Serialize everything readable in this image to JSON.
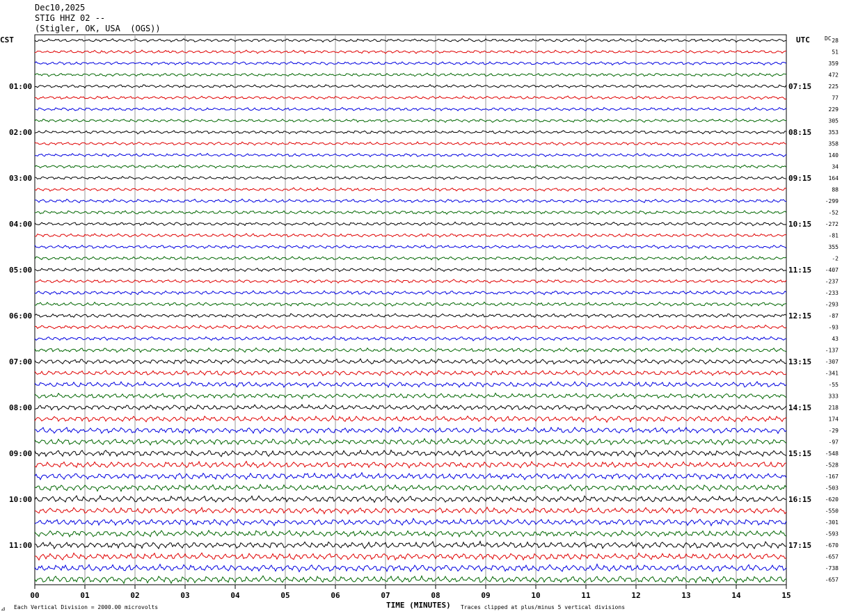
{
  "header": {
    "date": "Dec10,2025",
    "channel": "STIG HHZ 02 --",
    "location": "(Stigler, OK, USA  (OGS))"
  },
  "left_timezone": "CST",
  "right_timezone": "UTC",
  "dc_label": "DC",
  "footer": {
    "left_mark": "⊿",
    "scale": "Each Vertical Division = 2000.00 microvolts",
    "axis_title": "TIME (MINUTES)",
    "clip": "Traces clipped at plus/minus 5 vertical divisions"
  },
  "colors": {
    "trace_cycle": [
      "#000000",
      "#e00000",
      "#0000e0",
      "#006600"
    ],
    "grid": "#999999"
  },
  "chart_data": {
    "type": "line",
    "title": "",
    "xlabel": "TIME (MINUTES)",
    "x_ticks": [
      "00",
      "01",
      "02",
      "03",
      "04",
      "05",
      "06",
      "07",
      "08",
      "09",
      "10",
      "11",
      "12",
      "13",
      "14",
      "15"
    ],
    "xlim": [
      0,
      15
    ],
    "left_time_labels": [
      "01:00",
      "02:00",
      "03:00",
      "04:00",
      "05:00",
      "06:00",
      "07:00",
      "08:00",
      "09:00",
      "10:00",
      "11:00"
    ],
    "right_time_labels": [
      "07:15",
      "08:15",
      "09:15",
      "10:15",
      "11:15",
      "12:15",
      "13:15",
      "14:15",
      "15:15",
      "16:15",
      "17:15"
    ],
    "dc_offsets": [
      "28",
      "51",
      "359",
      "472",
      "225",
      "77",
      "229",
      "305",
      "353",
      "358",
      "140",
      "34",
      "164",
      "88",
      "-299",
      "-52",
      "-272",
      "-81",
      "355",
      "-2",
      "-407",
      "-237",
      "-233",
      "-293",
      "-87",
      "-93",
      "43",
      "-137",
      "-307",
      "-341",
      "-55",
      "333",
      "218",
      "174",
      "-29",
      "-97",
      "-548",
      "-528",
      "-167",
      "-503",
      "-620",
      "-550",
      "-301",
      "-593",
      "-670",
      "-657",
      "-738",
      "-657"
    ],
    "trace_amplitude": [
      1.0,
      1.0,
      1.0,
      1.0,
      1.0,
      1.0,
      1.0,
      1.0,
      1.0,
      1.0,
      1.0,
      1.0,
      1.0,
      1.0,
      1.1,
      1.1,
      1.1,
      1.1,
      1.1,
      1.1,
      1.1,
      1.1,
      1.2,
      1.2,
      1.2,
      1.2,
      1.2,
      1.3,
      1.6,
      1.6,
      1.7,
      1.6,
      1.7,
      1.8,
      1.9,
      1.9,
      2.0,
      2.0,
      2.0,
      2.0,
      2.0,
      2.0,
      2.0,
      2.0,
      2.1,
      2.1,
      2.2,
      2.2
    ]
  }
}
